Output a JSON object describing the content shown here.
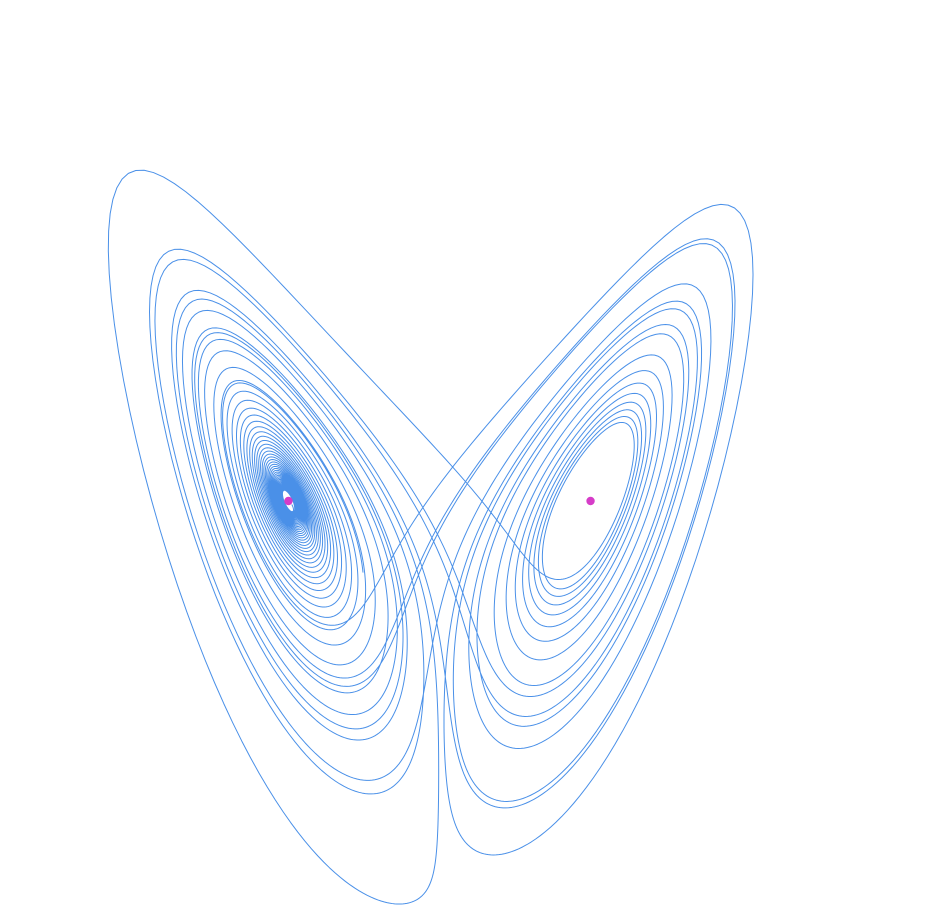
{
  "diagram": {
    "kind": "lorenz-attractor-projection",
    "background_color": "#ffffff",
    "trajectory": {
      "color": "#4a90e8",
      "system": "lorenz",
      "parameters": {
        "sigma": 10,
        "rho": 28,
        "beta": 2.6667
      },
      "projection": [
        "x",
        "z"
      ]
    },
    "fixed_points": {
      "color": "#d63cc8",
      "count": 2
    }
  }
}
